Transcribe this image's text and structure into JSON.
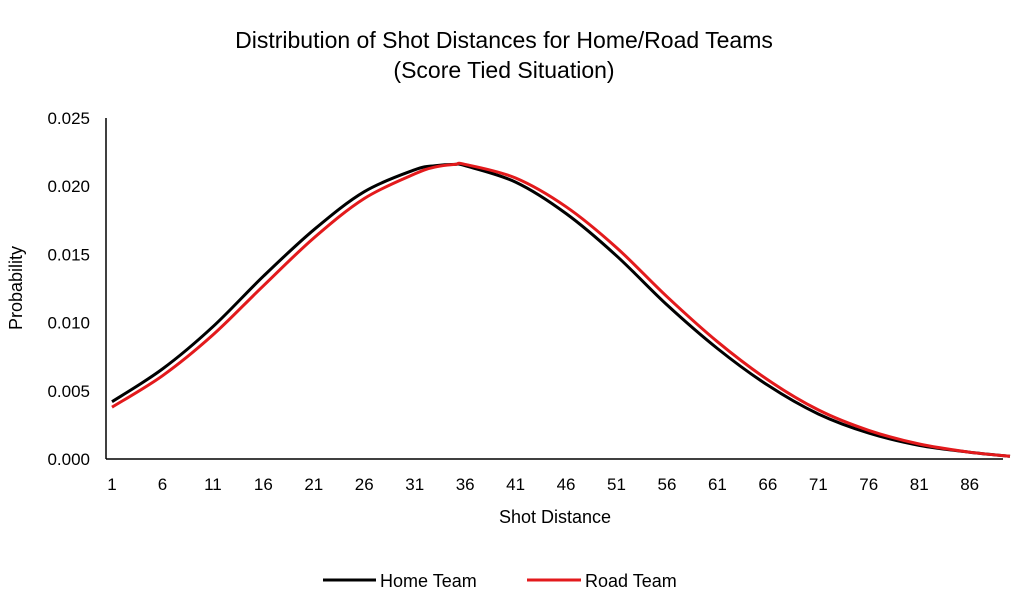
{
  "chart_data": {
    "type": "line",
    "title": "Distribution of Shot Distances for Home/Road Teams",
    "subtitle": "(Score Tied Situation)",
    "xlabel": "Shot Distance",
    "ylabel": "Probability",
    "ylim": [
      0,
      0.025
    ],
    "yticks": [
      "0.000",
      "0.005",
      "0.010",
      "0.015",
      "0.020",
      "0.025"
    ],
    "xticks": [
      "1",
      "6",
      "11",
      "16",
      "21",
      "26",
      "31",
      "36",
      "41",
      "46",
      "51",
      "56",
      "61",
      "66",
      "71",
      "76",
      "81",
      "86"
    ],
    "x_range": [
      1,
      90
    ],
    "grid": false,
    "legend_position": "bottom",
    "series": [
      {
        "name": "Home Team",
        "color": "#000000",
        "x": [
          1,
          6,
          11,
          16,
          21,
          26,
          31,
          33,
          35,
          36,
          41,
          46,
          51,
          56,
          61,
          66,
          71,
          76,
          81,
          86,
          90
        ],
        "values": [
          0.0042,
          0.0066,
          0.0097,
          0.0134,
          0.0168,
          0.0196,
          0.0212,
          0.0215,
          0.0216,
          0.0215,
          0.0203,
          0.018,
          0.0149,
          0.0113,
          0.0081,
          0.0054,
          0.0033,
          0.0019,
          0.001,
          0.0005,
          0.0002
        ]
      },
      {
        "name": "Road Team",
        "color": "#e31a1c",
        "x": [
          1,
          6,
          11,
          16,
          21,
          26,
          31,
          33,
          35,
          36,
          41,
          46,
          51,
          56,
          61,
          66,
          71,
          76,
          81,
          86,
          90
        ],
        "values": [
          0.0038,
          0.0061,
          0.0091,
          0.0127,
          0.0162,
          0.0191,
          0.0209,
          0.0214,
          0.0216,
          0.0216,
          0.0206,
          0.0185,
          0.0155,
          0.0119,
          0.0086,
          0.0058,
          0.0036,
          0.0021,
          0.0011,
          0.0005,
          0.0002
        ]
      }
    ]
  }
}
